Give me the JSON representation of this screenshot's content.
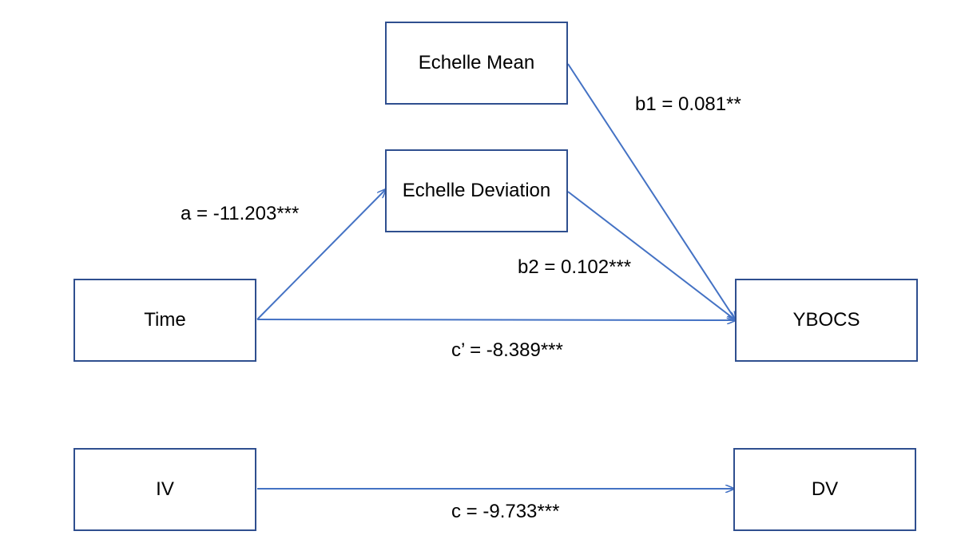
{
  "diagram": {
    "nodes": {
      "echelle_mean": "Echelle Mean",
      "echelle_deviation": "Echelle Deviation",
      "time": "Time",
      "ybocs": "YBOCS",
      "iv": "IV",
      "dv": "DV"
    },
    "paths": {
      "b1": "b1 = 0.081**",
      "a": "a = -11.203***",
      "b2": "b2 = 0.102***",
      "c_prime": "c’ = -8.389***",
      "c": "c = -9.733***"
    },
    "edges": [
      {
        "from": "time",
        "to": "echelle_deviation",
        "label": "a"
      },
      {
        "from": "echelle_mean",
        "to": "ybocs",
        "label": "b1"
      },
      {
        "from": "echelle_deviation",
        "to": "ybocs",
        "label": "b2"
      },
      {
        "from": "time",
        "to": "ybocs",
        "label": "c_prime"
      },
      {
        "from": "iv",
        "to": "dv",
        "label": "c"
      }
    ],
    "colors": {
      "box_border": "#2f4f8f",
      "arrow": "#4472c4"
    }
  }
}
